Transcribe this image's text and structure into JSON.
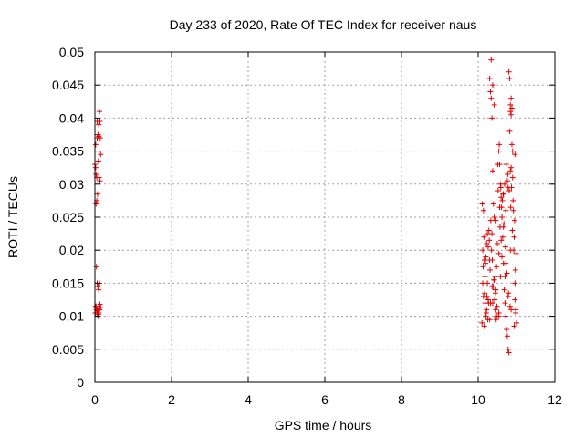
{
  "chart_data": {
    "type": "scatter",
    "title": "Day 233 of 2020, Rate Of TEC Index for receiver naus",
    "xlabel": "GPS time / hours",
    "ylabel": "ROTI / TECUs",
    "xlim": [
      0,
      12
    ],
    "ylim": [
      0,
      0.05
    ],
    "x_ticks": [
      0,
      2,
      4,
      6,
      8,
      10,
      12
    ],
    "x_tick_labels": [
      "0",
      "2",
      "4",
      "6",
      "8",
      "10",
      "12"
    ],
    "y_ticks": [
      0,
      0.005,
      0.01,
      0.015,
      0.02,
      0.025,
      0.03,
      0.035,
      0.04,
      0.045,
      0.05
    ],
    "y_tick_labels": [
      "0",
      "0.005",
      "0.01",
      "0.015",
      "0.02",
      "0.025",
      "0.03",
      "0.035",
      "0.04",
      "0.045",
      "0.05"
    ],
    "grid": true,
    "marker": "+",
    "marker_color": "#e00000",
    "series": [
      {
        "name": "ROTI",
        "x": [
          0.0,
          0.02,
          0.03,
          0.05,
          0.06,
          0.08,
          0.1,
          0.12,
          0.13,
          0.14,
          0.15,
          0.03,
          0.05,
          0.07,
          0.09,
          0.11,
          0.13,
          0.04,
          0.06,
          0.08,
          0.1,
          0.12,
          0.02,
          0.04,
          0.06,
          0.08,
          0.1,
          0.12,
          0.01,
          0.03,
          0.05,
          0.07,
          0.09,
          0.11,
          0.13,
          0.15,
          0.02,
          0.06,
          0.1,
          10.1,
          10.12,
          10.14,
          10.16,
          10.18,
          10.2,
          10.22,
          10.24,
          10.26,
          10.28,
          10.3,
          10.32,
          10.34,
          10.36,
          10.38,
          10.4,
          10.42,
          10.44,
          10.46,
          10.48,
          10.5,
          10.52,
          10.54,
          10.56,
          10.58,
          10.6,
          10.62,
          10.64,
          10.66,
          10.68,
          10.7,
          10.72,
          10.74,
          10.76,
          10.78,
          10.8,
          10.82,
          10.84,
          10.86,
          10.88,
          10.9,
          10.92,
          10.94,
          10.96,
          10.98,
          11.0,
          10.11,
          10.15,
          10.19,
          10.23,
          10.27,
          10.31,
          10.35,
          10.39,
          10.43,
          10.47,
          10.51,
          10.55,
          10.59,
          10.63,
          10.67,
          10.71,
          10.75,
          10.79,
          10.83,
          10.87,
          10.91,
          10.95,
          10.99,
          10.13,
          10.17,
          10.21,
          10.25,
          10.29,
          10.33,
          10.37,
          10.41,
          10.45,
          10.49,
          10.53,
          10.57,
          10.61,
          10.65,
          10.69,
          10.73,
          10.77,
          10.81,
          10.85,
          10.89,
          10.93,
          10.97,
          10.12,
          10.18,
          10.24,
          10.3,
          10.36,
          10.42,
          10.48,
          10.54,
          10.6,
          10.66,
          10.72,
          10.78,
          10.84,
          10.9,
          10.96,
          10.14,
          10.22,
          10.3,
          10.38,
          10.46,
          10.54,
          10.62,
          10.7,
          10.78,
          10.86,
          10.94,
          10.16,
          10.26,
          10.36,
          10.46,
          10.56,
          10.66,
          10.76,
          10.86,
          10.96,
          10.2,
          10.32,
          10.44,
          10.58,
          10.72,
          10.84,
          10.98,
          10.34,
          10.38,
          10.42,
          10.8,
          10.82,
          10.84,
          10.86,
          10.88
        ],
        "y": [
          0.033,
          0.0325,
          0.0315,
          0.031,
          0.037,
          0.0375,
          0.039,
          0.041,
          0.0395,
          0.037,
          0.0345,
          0.027,
          0.0275,
          0.0285,
          0.0335,
          0.031,
          0.0305,
          0.0175,
          0.015,
          0.0145,
          0.014,
          0.015,
          0.0115,
          0.011,
          0.0105,
          0.01,
          0.0105,
          0.011,
          0.0105,
          0.0115,
          0.011,
          0.0108,
          0.0103,
          0.0112,
          0.0118,
          0.0113,
          0.036,
          0.0395,
          0.0372,
          0.009,
          0.015,
          0.026,
          0.0085,
          0.012,
          0.019,
          0.021,
          0.015,
          0.0125,
          0.023,
          0.046,
          0.044,
          0.043,
          0.04,
          0.032,
          0.027,
          0.025,
          0.016,
          0.011,
          0.01,
          0.021,
          0.029,
          0.035,
          0.033,
          0.03,
          0.028,
          0.025,
          0.022,
          0.018,
          0.014,
          0.012,
          0.01,
          0.008,
          0.007,
          0.005,
          0.0045,
          0.038,
          0.041,
          0.043,
          0.036,
          0.031,
          0.026,
          0.022,
          0.015,
          0.011,
          0.009,
          0.027,
          0.022,
          0.018,
          0.013,
          0.012,
          0.017,
          0.02,
          0.0145,
          0.0125,
          0.0095,
          0.033,
          0.036,
          0.0295,
          0.0275,
          0.024,
          0.0205,
          0.0165,
          0.0135,
          0.0115,
          0.0295,
          0.0275,
          0.0245,
          0.0195,
          0.0175,
          0.0135,
          0.0105,
          0.0095,
          0.0215,
          0.0245,
          0.0185,
          0.0155,
          0.0135,
          0.0115,
          0.01,
          0.0235,
          0.0265,
          0.0285,
          0.03,
          0.033,
          0.0315,
          0.029,
          0.0265,
          0.023,
          0.02,
          0.017,
          0.02,
          0.016,
          0.0225,
          0.0185,
          0.0145,
          0.0155,
          0.0175,
          0.0195,
          0.0215,
          0.0235,
          0.026,
          0.0295,
          0.032,
          0.035,
          0.0125,
          0.013,
          0.011,
          0.0095,
          0.012,
          0.014,
          0.0105,
          0.019,
          0.016,
          0.013,
          0.011,
          0.0085,
          0.0185,
          0.0205,
          0.0225,
          0.0245,
          0.0265,
          0.0285,
          0.0305,
          0.0325,
          0.0345,
          0.01,
          0.012,
          0.014,
          0.016,
          0.018,
          0.02,
          0.0105,
          0.0488,
          0.045,
          0.042,
          0.047,
          0.046,
          0.042,
          0.0405,
          0.0415
        ]
      }
    ]
  }
}
